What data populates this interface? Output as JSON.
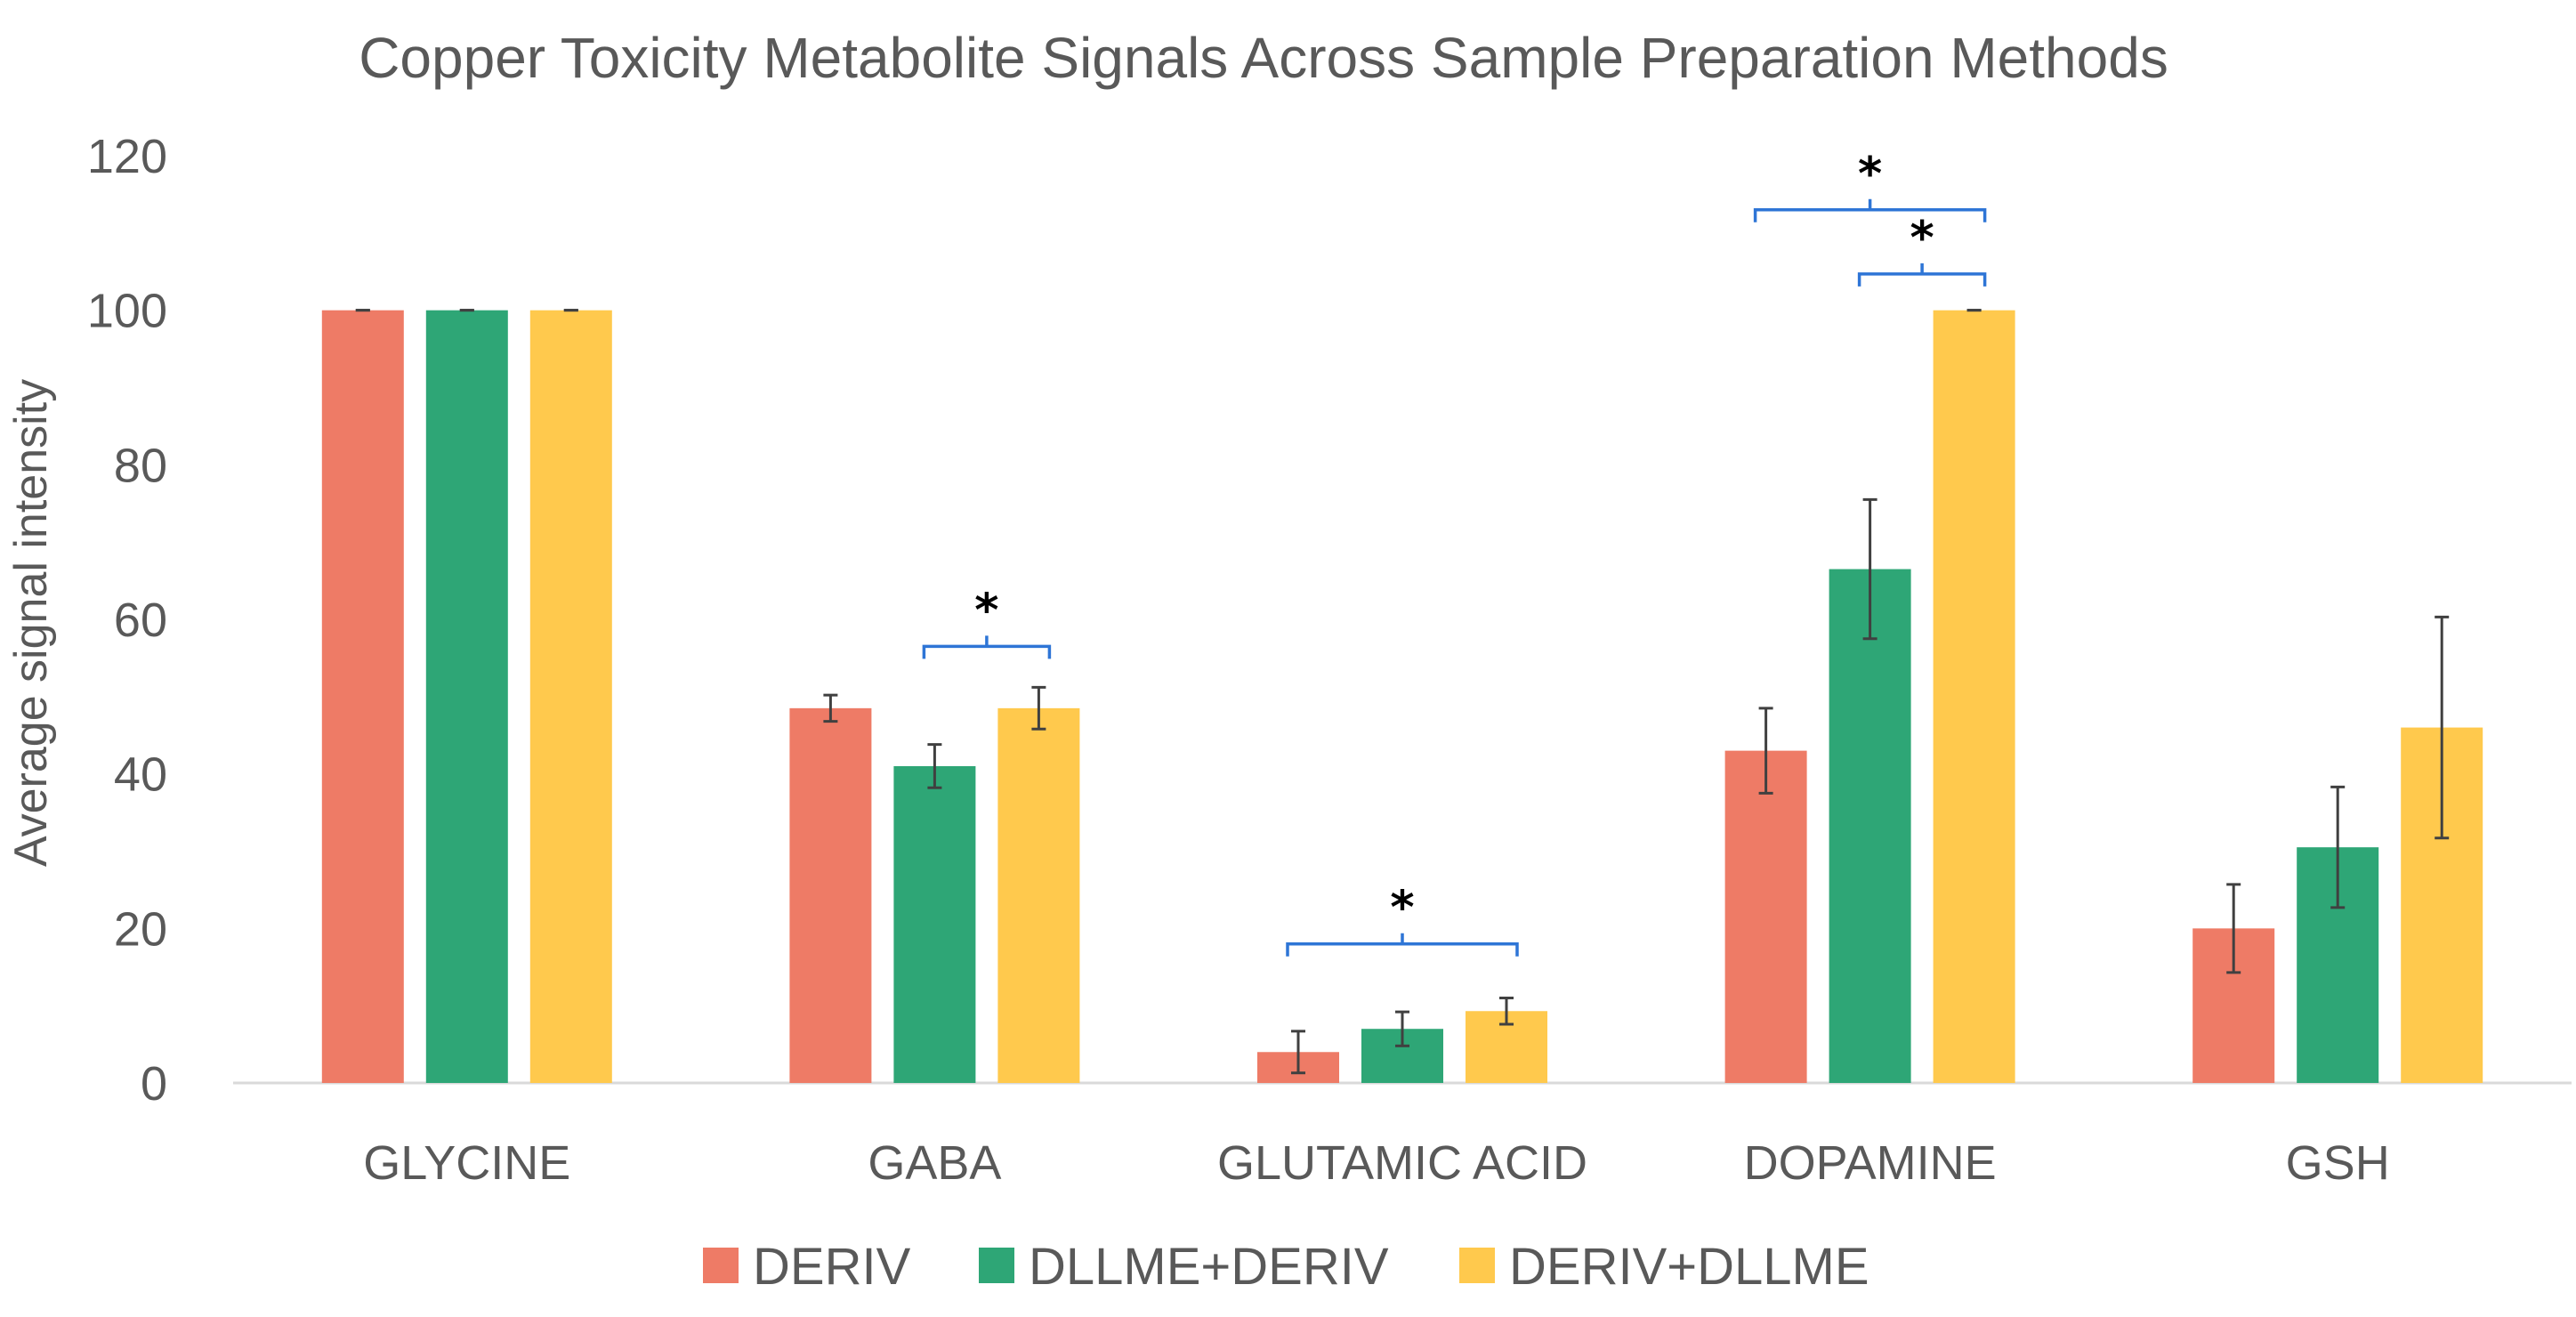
{
  "chart_data": {
    "type": "bar",
    "title": "Copper Toxicity Metabolite Signals Across Sample Preparation Methods",
    "xlabel": "",
    "ylabel": "Average signal intensity",
    "ylim": [
      0,
      120
    ],
    "yticks": [
      0,
      20,
      40,
      60,
      80,
      100,
      120
    ],
    "categories": [
      "GLYCINE",
      "GABA",
      "GLUTAMIC ACID",
      "DOPAMINE",
      "GSH"
    ],
    "series": [
      {
        "name": "DERIV",
        "color": "#EE7B66",
        "values": [
          100,
          48.5,
          4,
          43,
          20
        ],
        "errors": [
          0,
          1.7,
          2.7,
          5.5,
          5.7
        ]
      },
      {
        "name": "DLLME+DERIV",
        "color": "#2EA676",
        "values": [
          100,
          41,
          7,
          66.5,
          30.5
        ],
        "errors": [
          0,
          2.8,
          2.2,
          9,
          7.8
        ]
      },
      {
        "name": "DERIV+DLLME",
        "color": "#FFC94D",
        "values": [
          100,
          48.5,
          9.3,
          100,
          46
        ],
        "errors": [
          0,
          2.7,
          1.7,
          0,
          14.3
        ]
      }
    ],
    "significance": [
      {
        "category": "GABA",
        "from_series": 1,
        "to_series": 2,
        "y": 56.5,
        "label": "*"
      },
      {
        "category": "GLUTAMIC ACID",
        "from_series": 0,
        "to_series": 2,
        "y": 18,
        "label": "*"
      },
      {
        "category": "DOPAMINE",
        "from_series": 0,
        "to_series": 2,
        "y": 113,
        "label": "*"
      },
      {
        "category": "DOPAMINE",
        "from_series": 1,
        "to_series": 2,
        "y": 104.7,
        "label": "*"
      }
    ],
    "bracket_color": "#2E75D6",
    "legend_position": "bottom",
    "grid": false
  }
}
